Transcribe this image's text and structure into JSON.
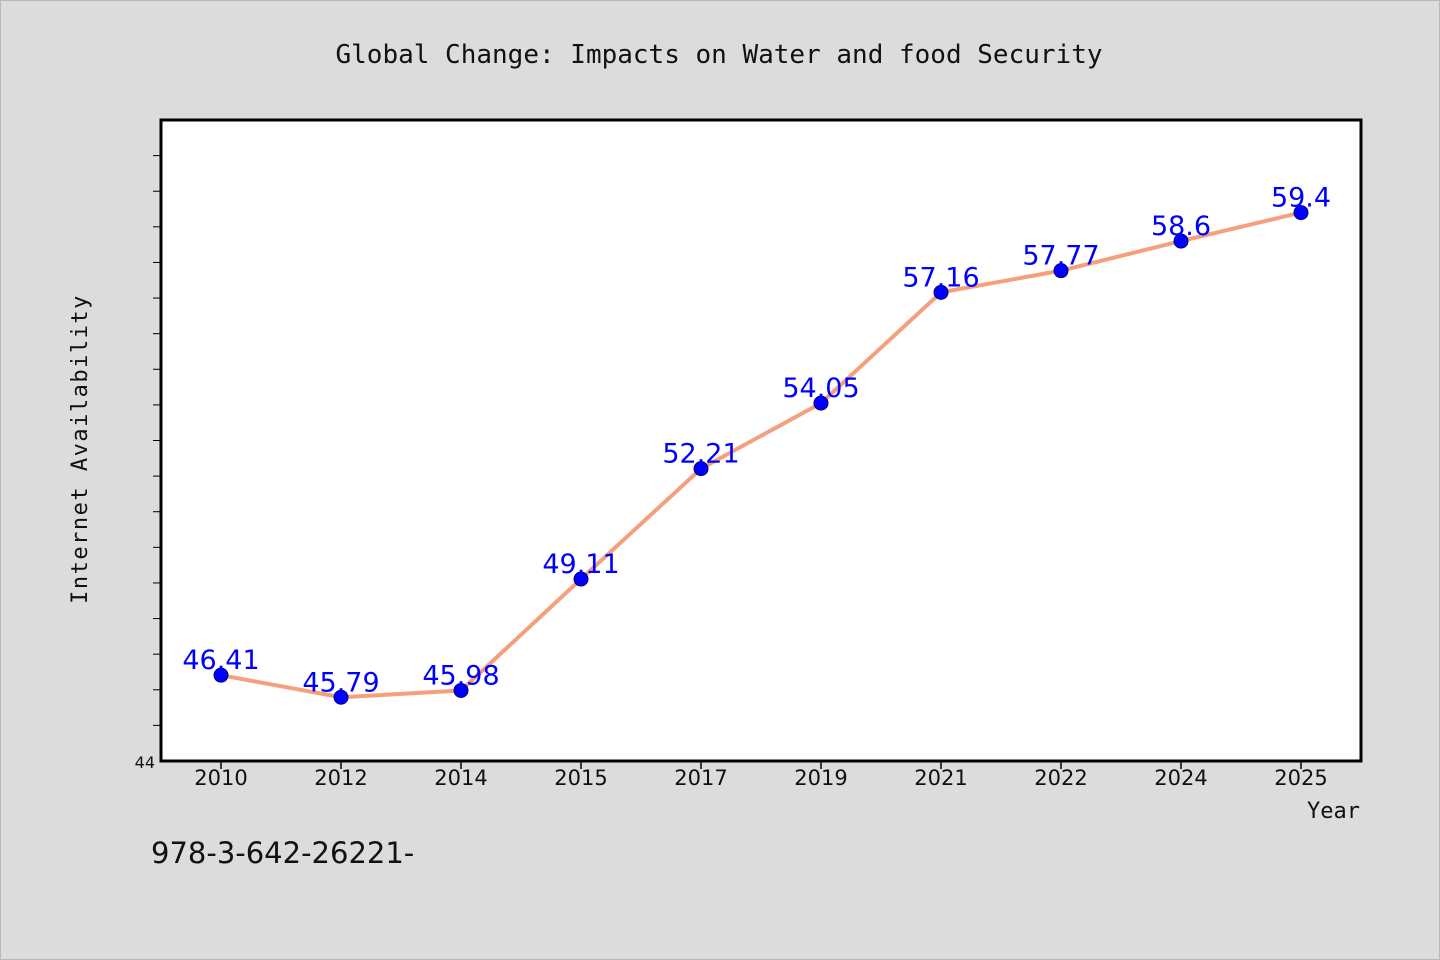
{
  "chart_data": {
    "type": "line",
    "title": "Global Change: Impacts on Water and food Security",
    "xlabel": "Year",
    "ylabel": "Internet Availability",
    "categories": [
      "2010",
      "2012",
      "2014",
      "2015",
      "2017",
      "2019",
      "2021",
      "2022",
      "2024",
      "2025"
    ],
    "series": [
      {
        "values": [
          46.41,
          45.79,
          45.98,
          49.11,
          52.21,
          54.05,
          57.16,
          57.77,
          58.6,
          59.4
        ],
        "data_labels": [
          "46.41",
          "45.79",
          "45.98",
          "49.11",
          "52.21",
          "54.05",
          "57.16",
          "57.77",
          "58.6",
          "59.4"
        ]
      }
    ],
    "ylim": [
      44,
      62
    ],
    "y_tick_labels": [
      "44"
    ],
    "grid": false,
    "legend": "none",
    "colors": {
      "line": "#f4a07c",
      "marker": "#0000ff",
      "data_label": "#0000ff",
      "frame": "#000000",
      "plot_background": "#ffffff",
      "page_background": "#dcdcdc"
    }
  },
  "footer_text": "978-3-642-26221-"
}
